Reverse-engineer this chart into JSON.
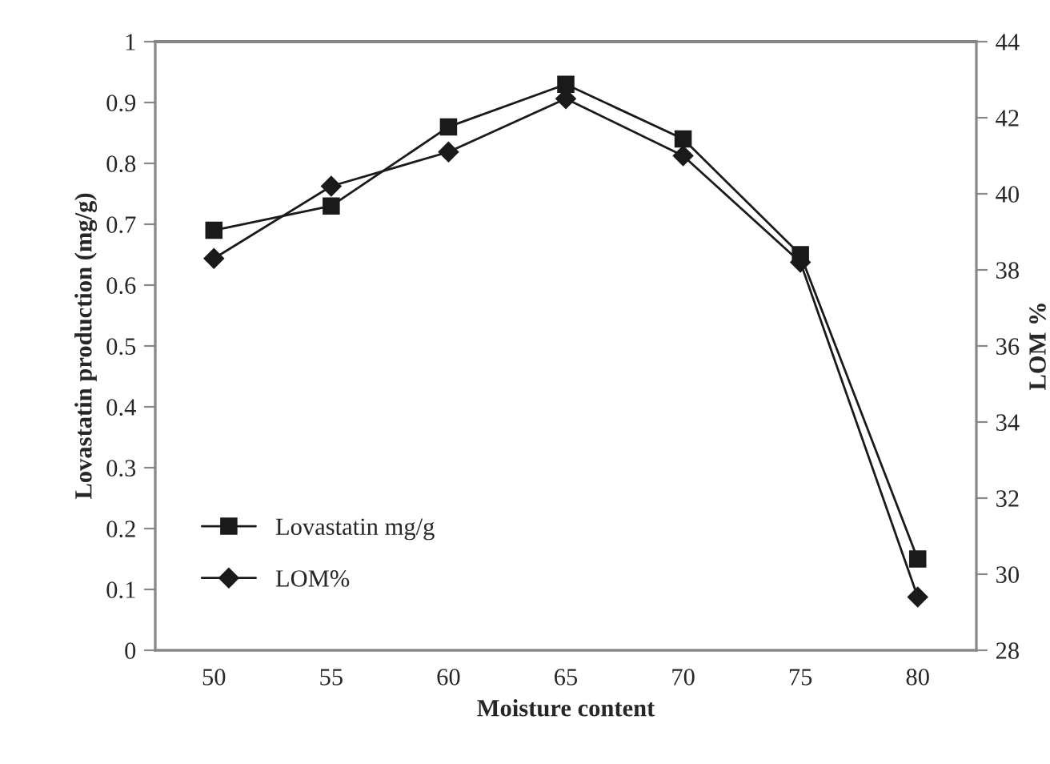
{
  "chart_data": {
    "type": "line",
    "xlabel": "Moisture content",
    "ylabel": "Lovastatin production (mg/g)",
    "y2label": "LOM %",
    "categories": [
      "50",
      "55",
      "60",
      "65",
      "70",
      "75",
      "80"
    ],
    "series": [
      {
        "name": "Lovastatin mg/g",
        "color": "#1a1a1a",
        "marker": "square",
        "values": [
          0.69,
          0.73,
          0.86,
          0.93,
          0.84,
          0.65,
          0.15
        ]
      },
      {
        "name": "LOM%",
        "color": "#1a1a1a",
        "marker": "diamond",
        "axis": "y2",
        "values": [
          38.3,
          40.2,
          41.1,
          42.5,
          41.0,
          38.2,
          29.4
        ]
      }
    ],
    "ylim": [
      0,
      1
    ],
    "yticks": [
      0,
      0.1,
      0.2,
      0.3,
      0.4,
      0.5,
      0.6,
      0.7,
      0.8,
      0.9,
      1
    ],
    "y2lim": [
      28,
      44
    ],
    "y2ticks": [
      28,
      30,
      32,
      34,
      36,
      38,
      40,
      42,
      44
    ],
    "legend": "bottom left",
    "grid": false,
    "line_style": "solid"
  }
}
